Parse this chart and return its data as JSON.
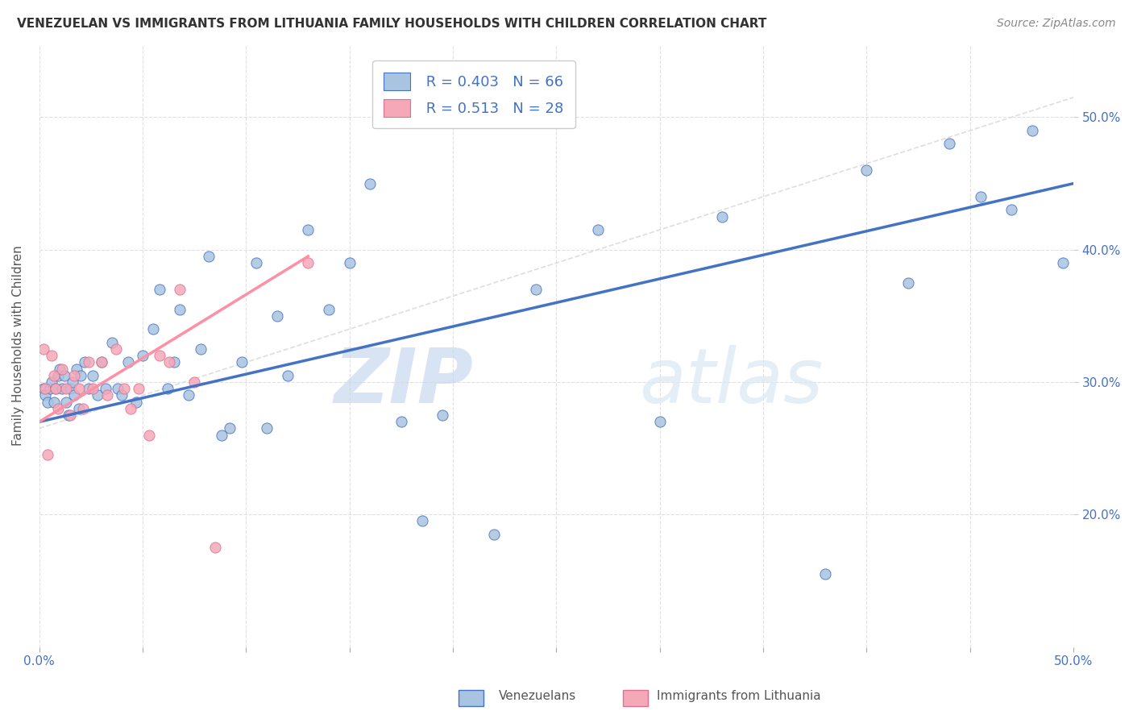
{
  "title": "VENEZUELAN VS IMMIGRANTS FROM LITHUANIA FAMILY HOUSEHOLDS WITH CHILDREN CORRELATION CHART",
  "source": "Source: ZipAtlas.com",
  "ylabel": "Family Households with Children",
  "xaxis_range": [
    0.0,
    0.5
  ],
  "yaxis_range": [
    0.1,
    0.555
  ],
  "watermark": "ZIPatlas",
  "legend_R1": "R = 0.403",
  "legend_N1": "N = 66",
  "legend_R2": "R = 0.513",
  "legend_N2": "N = 28",
  "color_blue": "#a8c4e0",
  "color_pink": "#f4a8b8",
  "line_blue": "#4472C4",
  "line_pink": "#FF8FA3",
  "line_diagonal": "#C8C8C8",
  "venezuelan_x": [
    0.002,
    0.003,
    0.004,
    0.005,
    0.006,
    0.007,
    0.008,
    0.009,
    0.01,
    0.011,
    0.012,
    0.013,
    0.014,
    0.015,
    0.016,
    0.017,
    0.018,
    0.019,
    0.02,
    0.022,
    0.024,
    0.026,
    0.028,
    0.03,
    0.032,
    0.035,
    0.038,
    0.04,
    0.043,
    0.047,
    0.05,
    0.055,
    0.058,
    0.062,
    0.065,
    0.068,
    0.072,
    0.078,
    0.082,
    0.088,
    0.092,
    0.098,
    0.105,
    0.11,
    0.115,
    0.12,
    0.13,
    0.14,
    0.15,
    0.16,
    0.175,
    0.185,
    0.195,
    0.22,
    0.24,
    0.27,
    0.3,
    0.33,
    0.38,
    0.4,
    0.42,
    0.44,
    0.455,
    0.47,
    0.48,
    0.495
  ],
  "venezuelan_y": [
    0.295,
    0.29,
    0.285,
    0.295,
    0.3,
    0.285,
    0.295,
    0.305,
    0.31,
    0.295,
    0.305,
    0.285,
    0.275,
    0.295,
    0.3,
    0.29,
    0.31,
    0.28,
    0.305,
    0.315,
    0.295,
    0.305,
    0.29,
    0.315,
    0.295,
    0.33,
    0.295,
    0.29,
    0.315,
    0.285,
    0.32,
    0.34,
    0.37,
    0.295,
    0.315,
    0.355,
    0.29,
    0.325,
    0.395,
    0.26,
    0.265,
    0.315,
    0.39,
    0.265,
    0.35,
    0.305,
    0.415,
    0.355,
    0.39,
    0.45,
    0.27,
    0.195,
    0.275,
    0.185,
    0.37,
    0.415,
    0.27,
    0.425,
    0.155,
    0.46,
    0.375,
    0.48,
    0.44,
    0.43,
    0.49,
    0.39
  ],
  "lithuania_x": [
    0.002,
    0.003,
    0.004,
    0.006,
    0.007,
    0.008,
    0.009,
    0.011,
    0.013,
    0.015,
    0.017,
    0.019,
    0.021,
    0.024,
    0.026,
    0.03,
    0.033,
    0.037,
    0.041,
    0.044,
    0.048,
    0.053,
    0.058,
    0.063,
    0.068,
    0.075,
    0.085,
    0.13
  ],
  "lithuania_y": [
    0.325,
    0.295,
    0.245,
    0.32,
    0.305,
    0.295,
    0.28,
    0.31,
    0.295,
    0.275,
    0.305,
    0.295,
    0.28,
    0.315,
    0.295,
    0.315,
    0.29,
    0.325,
    0.295,
    0.28,
    0.295,
    0.26,
    0.32,
    0.315,
    0.37,
    0.3,
    0.175,
    0.39
  ],
  "blue_line_x": [
    0.0,
    0.5
  ],
  "blue_line_y": [
    0.27,
    0.45
  ],
  "pink_line_x": [
    0.0,
    0.13
  ],
  "pink_line_y": [
    0.27,
    0.395
  ],
  "diag_line_x": [
    0.0,
    0.5
  ],
  "diag_line_y": [
    0.265,
    0.515
  ],
  "ytick_positions": [
    0.2,
    0.3,
    0.4,
    0.5
  ],
  "ytick_labels": [
    "20.0%",
    "30.0%",
    "40.0%",
    "50.0%"
  ]
}
